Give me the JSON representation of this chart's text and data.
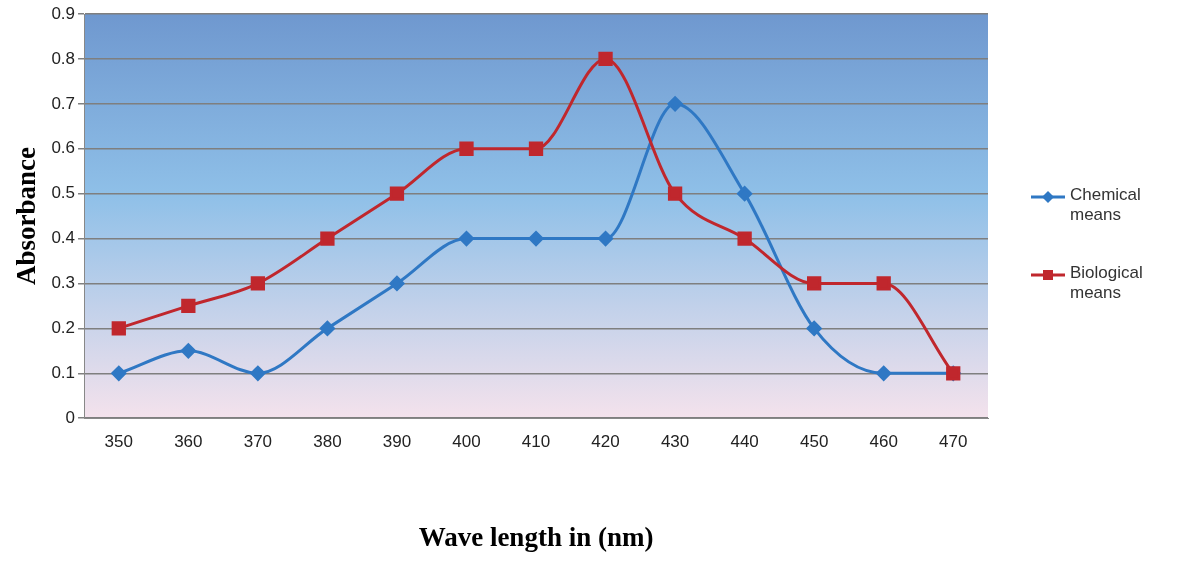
{
  "chart_data": {
    "type": "line",
    "xlabel": "Wave length in (nm)",
    "ylabel": "Absorbance",
    "categories": [
      "350",
      "360",
      "370",
      "380",
      "390",
      "400",
      "410",
      "420",
      "430",
      "440",
      "450",
      "460",
      "470"
    ],
    "series": [
      {
        "name": "Chemical means",
        "color": "#2f78c4",
        "marker": "diamond",
        "values": [
          0.1,
          0.15,
          0.1,
          0.2,
          0.3,
          0.4,
          0.4,
          0.4,
          0.7,
          0.5,
          0.2,
          0.1,
          0.1
        ]
      },
      {
        "name": "Biological means",
        "color": "#c0272d",
        "marker": "square",
        "values": [
          0.2,
          0.25,
          0.3,
          0.4,
          0.5,
          0.6,
          0.6,
          0.8,
          0.5,
          0.4,
          0.3,
          0.3,
          0.1
        ]
      }
    ],
    "ylim": [
      0,
      0.9
    ],
    "yticks": [
      0,
      0.1,
      0.2,
      0.3,
      0.4,
      0.5,
      0.6,
      0.7,
      0.8,
      0.9
    ],
    "grid": "y",
    "legend": "right"
  }
}
